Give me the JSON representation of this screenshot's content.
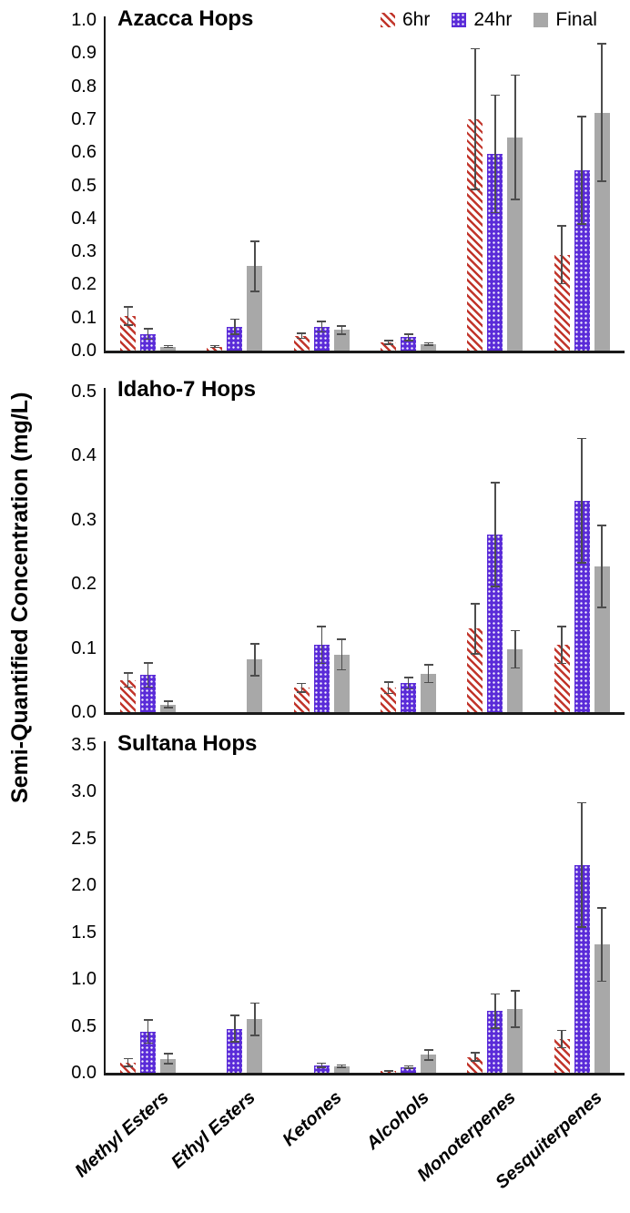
{
  "figure": {
    "ylabel": "Semi-Quantified Concentration (mg/L)"
  },
  "colors": {
    "series_6hr": "#c1352b",
    "series_24hr": "#5a2bd8",
    "series_final": "#a8a8a8",
    "error_bar": "#4d4d4d",
    "axis": "#1a1a1a"
  },
  "legend": {
    "position": "top-right",
    "items": [
      {
        "label": "6hr",
        "swatch": "red-diagonal-hatch"
      },
      {
        "label": "24hr",
        "swatch": "blue-white-dots"
      },
      {
        "label": "Final",
        "swatch": "gray-solid"
      }
    ]
  },
  "chart_data": [
    {
      "type": "bar",
      "title": "Azacca Hops",
      "xlabel": "",
      "ylabel": "Semi-Quantified Concentration (mg/L)",
      "grid": false,
      "categories": [
        "Methyl Esters",
        "Ethyl Esters",
        "Ketones",
        "Alcohols",
        "Monoterpenes",
        "Sesquiterpenes"
      ],
      "ylim": [
        0,
        1.0
      ],
      "ytick_step": 0.1,
      "series": [
        {
          "name": "6hr",
          "values": [
            0.105,
            0.012,
            0.045,
            0.025,
            0.7,
            0.29
          ],
          "errors": [
            0.03,
            0.005,
            0.01,
            0.008,
            0.215,
            0.09
          ]
        },
        {
          "name": "24hr",
          "values": [
            0.05,
            0.072,
            0.072,
            0.04,
            0.595,
            0.545
          ],
          "errors": [
            0.018,
            0.025,
            0.018,
            0.012,
            0.18,
            0.165
          ]
        },
        {
          "name": "Final",
          "values": [
            0.012,
            0.255,
            0.062,
            0.02,
            0.645,
            0.72
          ],
          "errors": [
            0.005,
            0.078,
            0.015,
            0.006,
            0.19,
            0.21
          ]
        }
      ]
    },
    {
      "type": "bar",
      "title": "Idaho-7 Hops",
      "xlabel": "",
      "ylabel": "Semi-Quantified Concentration (mg/L)",
      "grid": false,
      "categories": [
        "Methyl Esters",
        "Ethyl Esters",
        "Ketones",
        "Alcohols",
        "Monoterpenes",
        "Sesquiterpenes"
      ],
      "ylim": [
        0,
        0.5
      ],
      "ytick_step": 0.1,
      "series": [
        {
          "name": "6hr",
          "values": [
            0.05,
            0,
            0.038,
            0.038,
            0.13,
            0.105
          ],
          "errors": [
            0.012,
            0,
            0.008,
            0.01,
            0.04,
            0.03
          ]
        },
        {
          "name": "24hr",
          "values": [
            0.058,
            0,
            0.105,
            0.045,
            0.277,
            0.33
          ],
          "errors": [
            0.02,
            0,
            0.03,
            0.01,
            0.082,
            0.098
          ]
        },
        {
          "name": "Final",
          "values": [
            0.012,
            0.082,
            0.09,
            0.06,
            0.098,
            0.227
          ],
          "errors": [
            0.006,
            0.026,
            0.025,
            0.015,
            0.03,
            0.065
          ]
        }
      ]
    },
    {
      "type": "bar",
      "title": "Sultana Hops",
      "xlabel": "",
      "ylabel": "Semi-Quantified Concentration (mg/L)",
      "grid": false,
      "categories": [
        "Methyl Esters",
        "Ethyl Esters",
        "Ketones",
        "Alcohols",
        "Monoterpenes",
        "Sesquiterpenes"
      ],
      "ylim": [
        0,
        3.5
      ],
      "ytick_step": 0.5,
      "series": [
        {
          "name": "6hr",
          "values": [
            0.11,
            0,
            0,
            0.02,
            0.17,
            0.36
          ],
          "errors": [
            0.05,
            0,
            0,
            0.01,
            0.05,
            0.1
          ]
        },
        {
          "name": "24hr",
          "values": [
            0.44,
            0.47,
            0.08,
            0.06,
            0.66,
            2.22
          ],
          "errors": [
            0.13,
            0.15,
            0.03,
            0.02,
            0.19,
            0.67
          ]
        },
        {
          "name": "Final",
          "values": [
            0.15,
            0.57,
            0.07,
            0.19,
            0.68,
            1.37
          ],
          "errors": [
            0.06,
            0.18,
            0.02,
            0.06,
            0.2,
            0.4
          ]
        }
      ]
    }
  ]
}
